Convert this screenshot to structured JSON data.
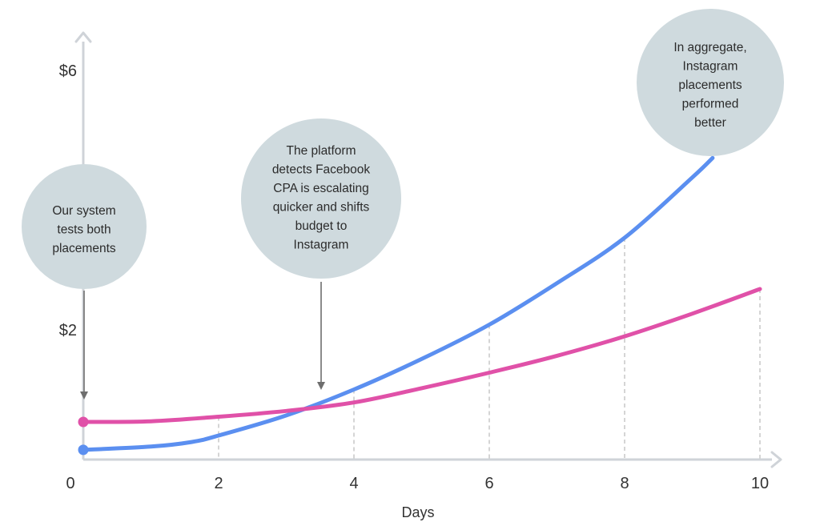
{
  "chart_data": {
    "type": "line",
    "xlabel": "Days",
    "ylabel": "",
    "x_ticks": [
      "0",
      "2",
      "4",
      "6",
      "8",
      "10"
    ],
    "y_ticks": [
      {
        "value": 2,
        "label": "$2"
      },
      {
        "value": 6,
        "label": "$6"
      }
    ],
    "xlim": [
      0,
      10.2
    ],
    "ylim": [
      0,
      6.6
    ],
    "grid": "vertical-dashed",
    "series": [
      {
        "color": "#5b8ff0",
        "points": [
          [
            0,
            0.15
          ],
          [
            1,
            0.2
          ],
          [
            1.6,
            0.27
          ],
          [
            2,
            0.37
          ],
          [
            3,
            0.68
          ],
          [
            4,
            1.08
          ],
          [
            5,
            1.55
          ],
          [
            6,
            2.08
          ],
          [
            7,
            2.72
          ],
          [
            8,
            3.42
          ],
          [
            9,
            4.35
          ],
          [
            9.3,
            4.65
          ]
        ]
      },
      {
        "color": "#e051a8",
        "points": [
          [
            0,
            0.58
          ],
          [
            1,
            0.59
          ],
          [
            2,
            0.66
          ],
          [
            3,
            0.75
          ],
          [
            4,
            0.88
          ],
          [
            5,
            1.1
          ],
          [
            6,
            1.34
          ],
          [
            7,
            1.6
          ],
          [
            8,
            1.9
          ],
          [
            9,
            2.25
          ],
          [
            10,
            2.63
          ]
        ]
      }
    ],
    "annotations": [
      {
        "text": "Our system tests both placements",
        "lines": [
          "Our system",
          "tests both",
          "placements"
        ],
        "points_to_x": 0
      },
      {
        "text": "The platform detects Facebook CPA is escalating quicker and shifts budget to Instagram",
        "lines": [
          "The platform",
          "detects Facebook",
          "CPA is escalating",
          "quicker and shifts",
          "budget to",
          "Instagram"
        ],
        "points_to_x": 3.55
      },
      {
        "text": "In aggregate, Instagram placements performed better",
        "lines": [
          "In aggregate,",
          "Instagram",
          "placements",
          "performed",
          "better"
        ],
        "points_to_x": 9.3
      }
    ]
  },
  "colors": {
    "axis": "#cfd3d8",
    "gridline": "#b9b9b9",
    "bubble_fill": "#cfdade",
    "annotation_arrow": "#6e6e6e"
  }
}
